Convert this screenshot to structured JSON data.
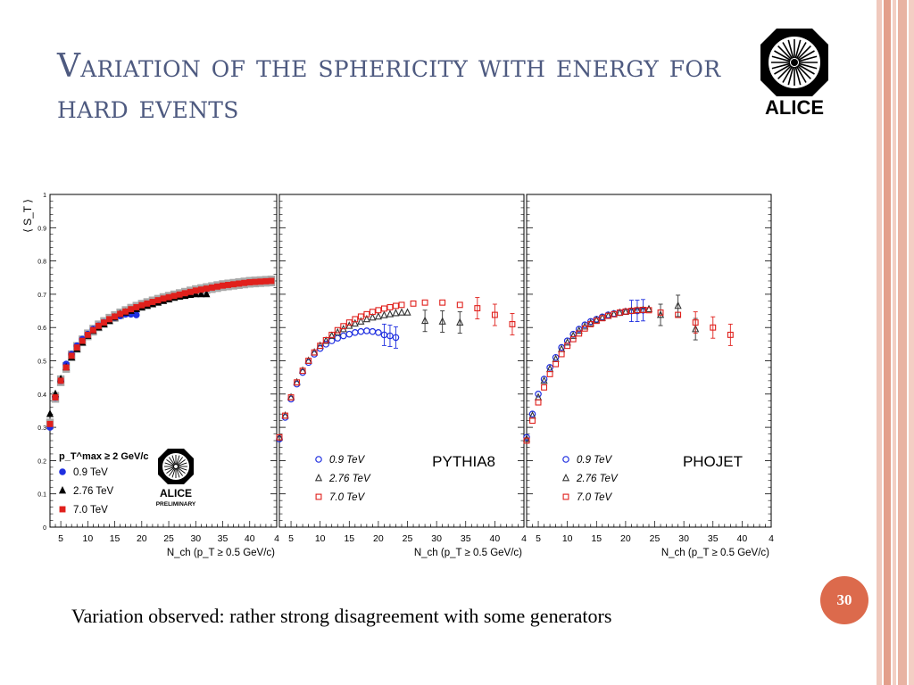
{
  "slide": {
    "title": "Variation of the sphericity with energy for hard events",
    "caption": "Variation  observed: rather strong disagreement with  some generators",
    "page_number": "30",
    "logo_text": "ALICE",
    "accent_color": "#dc6a4c",
    "title_color": "#4e5a80",
    "border_colors": [
      "#f0c9bd",
      "#e39f8b",
      "#f3cfc4"
    ]
  },
  "chart_data": [
    {
      "type": "scatter",
      "panel": "ALICE data",
      "ylabel": "⟨ S_T ⟩",
      "xlabel": "N_ch  (p_T ≥ 0.5 GeV/c)",
      "xlim": [
        3,
        45
      ],
      "ylim": [
        0,
        1
      ],
      "x_ticks": [
        "5",
        "10",
        "15",
        "20",
        "25",
        "30",
        "35",
        "40",
        "4"
      ],
      "y_ticks": [
        "0",
        "0.1",
        "0.2",
        "0.3",
        "0.4",
        "0.5",
        "0.6",
        "0.7",
        "0.8",
        "0.9",
        "1"
      ],
      "legend_header": "p_T^max ≥ 2 GeV/c",
      "legend_placement": "bottom-left",
      "logo_text": "ALICE",
      "logo_subtext": "PRELIMINARY",
      "series": [
        {
          "name": "0.9 TeV",
          "marker": "circle-filled",
          "color": "#1f2fe0",
          "x": [
            3,
            4,
            5,
            6,
            7,
            8,
            9,
            10,
            11,
            12,
            13,
            14,
            15,
            16,
            17,
            18,
            19
          ],
          "y": [
            0.3,
            0.39,
            0.44,
            0.49,
            0.52,
            0.545,
            0.565,
            0.58,
            0.595,
            0.605,
            0.615,
            0.623,
            0.63,
            0.635,
            0.64,
            0.64,
            0.638
          ]
        },
        {
          "name": "2.76 TeV",
          "marker": "triangle-filled",
          "color": "#000000",
          "x": [
            3,
            4,
            5,
            6,
            7,
            8,
            9,
            10,
            11,
            12,
            13,
            14,
            15,
            16,
            17,
            18,
            19,
            20,
            21,
            22,
            23,
            24,
            25,
            26,
            27,
            28,
            29,
            30,
            31,
            32
          ],
          "y": [
            0.34,
            0.4,
            0.445,
            0.48,
            0.51,
            0.535,
            0.555,
            0.575,
            0.59,
            0.6,
            0.61,
            0.62,
            0.63,
            0.64,
            0.645,
            0.65,
            0.655,
            0.66,
            0.665,
            0.67,
            0.675,
            0.68,
            0.685,
            0.69,
            0.693,
            0.695,
            0.698,
            0.7,
            0.7,
            0.7
          ]
        },
        {
          "name": "7.0 TeV",
          "marker": "square-filled",
          "color": "#e0201c",
          "x": [
            3,
            4,
            5,
            6,
            7,
            8,
            9,
            10,
            11,
            12,
            13,
            14,
            15,
            16,
            17,
            18,
            19,
            20,
            21,
            22,
            23,
            24,
            25,
            26,
            27,
            28,
            29,
            30,
            31,
            32,
            33,
            34,
            35,
            36,
            37,
            38,
            39,
            40,
            41,
            42,
            43,
            44
          ],
          "y": [
            0.31,
            0.39,
            0.44,
            0.48,
            0.515,
            0.54,
            0.56,
            0.578,
            0.592,
            0.605,
            0.615,
            0.625,
            0.633,
            0.641,
            0.648,
            0.655,
            0.661,
            0.667,
            0.672,
            0.677,
            0.682,
            0.687,
            0.691,
            0.695,
            0.699,
            0.703,
            0.707,
            0.711,
            0.714,
            0.717,
            0.72,
            0.723,
            0.726,
            0.728,
            0.73,
            0.732,
            0.734,
            0.736,
            0.737,
            0.738,
            0.739,
            0.74
          ]
        }
      ]
    },
    {
      "type": "scatter",
      "panel": "PYTHIA8",
      "label": "PYTHIA8",
      "xlabel": "N_ch  (p_T ≥ 0.5 GeV/c)",
      "xlim": [
        3,
        45
      ],
      "ylim": [
        0,
        1
      ],
      "x_ticks": [
        "5",
        "10",
        "15",
        "20",
        "25",
        "30",
        "35",
        "40",
        "4"
      ],
      "legend_placement": "bottom-left",
      "series": [
        {
          "name": "0.9 TeV",
          "marker": "circle-open",
          "color": "#1f2fe0",
          "x": [
            3,
            4,
            5,
            6,
            7,
            8,
            9,
            10,
            11,
            12,
            13,
            14,
            15,
            16,
            17,
            18,
            19,
            20,
            21,
            22,
            23
          ],
          "y": [
            0.265,
            0.33,
            0.385,
            0.43,
            0.465,
            0.495,
            0.52,
            0.537,
            0.55,
            0.56,
            0.568,
            0.575,
            0.58,
            0.585,
            0.588,
            0.59,
            0.588,
            0.585,
            0.578,
            0.575,
            0.57
          ]
        },
        {
          "name": "2.76 TeV",
          "marker": "triangle-open",
          "color": "#333333",
          "x": [
            3,
            4,
            5,
            6,
            7,
            8,
            9,
            10,
            11,
            12,
            13,
            14,
            15,
            16,
            17,
            18,
            19,
            20,
            21,
            22,
            23,
            24,
            25,
            28,
            31,
            34
          ],
          "y": [
            0.27,
            0.335,
            0.39,
            0.435,
            0.47,
            0.5,
            0.525,
            0.545,
            0.56,
            0.575,
            0.585,
            0.595,
            0.605,
            0.612,
            0.618,
            0.625,
            0.63,
            0.633,
            0.637,
            0.64,
            0.643,
            0.645,
            0.645,
            0.62,
            0.618,
            0.615
          ]
        },
        {
          "name": "7.0 TeV",
          "marker": "square-open",
          "color": "#e0201c",
          "x": [
            3,
            4,
            5,
            6,
            7,
            8,
            9,
            10,
            11,
            12,
            13,
            14,
            15,
            16,
            17,
            18,
            19,
            20,
            21,
            22,
            23,
            24,
            26,
            28,
            31,
            34,
            37,
            40,
            43
          ],
          "y": [
            0.27,
            0.335,
            0.39,
            0.435,
            0.47,
            0.5,
            0.525,
            0.545,
            0.562,
            0.578,
            0.592,
            0.604,
            0.615,
            0.625,
            0.633,
            0.64,
            0.647,
            0.652,
            0.657,
            0.661,
            0.665,
            0.668,
            0.672,
            0.675,
            0.675,
            0.668,
            0.658,
            0.638,
            0.61
          ]
        }
      ]
    },
    {
      "type": "scatter",
      "panel": "PHOJET",
      "label": "PHOJET",
      "xlabel": "N_ch  (p_T ≥ 0.5 GeV/c)",
      "xlim": [
        3,
        45
      ],
      "ylim": [
        0,
        1
      ],
      "x_ticks": [
        "5",
        "10",
        "15",
        "20",
        "25",
        "30",
        "35",
        "40",
        "4"
      ],
      "legend_placement": "bottom-left",
      "series": [
        {
          "name": "0.9 TeV",
          "marker": "circle-open",
          "color": "#1f2fe0",
          "x": [
            3,
            4,
            5,
            6,
            7,
            8,
            9,
            10,
            11,
            12,
            13,
            14,
            15,
            16,
            17,
            18,
            19,
            20,
            21,
            22,
            23
          ],
          "y": [
            0.27,
            0.34,
            0.4,
            0.445,
            0.48,
            0.51,
            0.54,
            0.56,
            0.58,
            0.595,
            0.608,
            0.618,
            0.625,
            0.632,
            0.638,
            0.642,
            0.645,
            0.648,
            0.65,
            0.65,
            0.652
          ]
        },
        {
          "name": "2.76 TeV",
          "marker": "triangle-open",
          "color": "#333333",
          "x": [
            3,
            4,
            5,
            6,
            7,
            8,
            9,
            10,
            11,
            12,
            13,
            14,
            15,
            16,
            17,
            18,
            19,
            20,
            21,
            22,
            23,
            24,
            26,
            29,
            32
          ],
          "y": [
            0.265,
            0.335,
            0.39,
            0.44,
            0.475,
            0.505,
            0.535,
            0.555,
            0.575,
            0.59,
            0.603,
            0.613,
            0.622,
            0.629,
            0.635,
            0.64,
            0.644,
            0.647,
            0.65,
            0.652,
            0.653,
            0.655,
            0.638,
            0.665,
            0.595
          ]
        },
        {
          "name": "7.0 TeV",
          "marker": "square-open",
          "color": "#e0201c",
          "x": [
            3,
            4,
            5,
            6,
            7,
            8,
            9,
            10,
            11,
            12,
            13,
            14,
            15,
            16,
            17,
            18,
            19,
            20,
            21,
            22,
            23,
            24,
            26,
            29,
            32,
            35,
            38
          ],
          "y": [
            0.26,
            0.32,
            0.375,
            0.42,
            0.46,
            0.49,
            0.52,
            0.545,
            0.565,
            0.582,
            0.597,
            0.61,
            0.62,
            0.628,
            0.635,
            0.64,
            0.645,
            0.648,
            0.65,
            0.652,
            0.653,
            0.652,
            0.645,
            0.638,
            0.615,
            0.6,
            0.578
          ]
        }
      ]
    }
  ]
}
